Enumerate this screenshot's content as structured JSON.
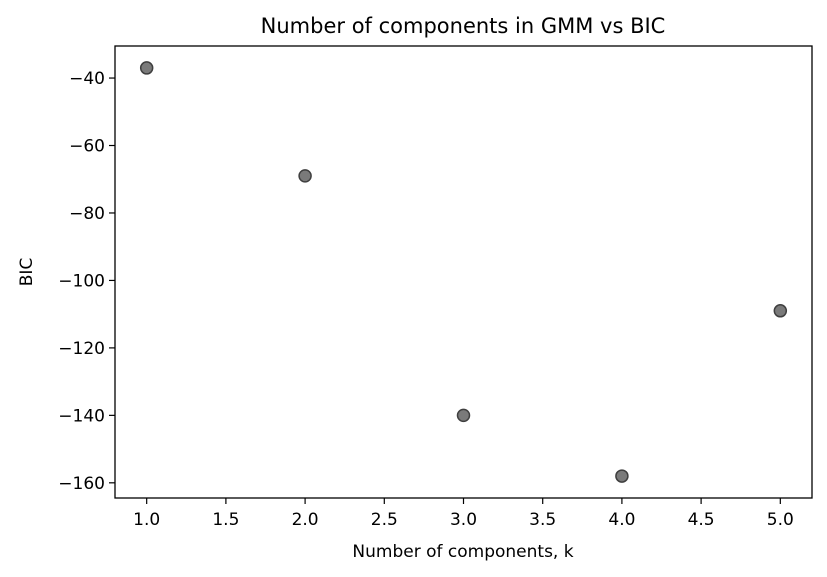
{
  "chart_data": {
    "type": "scatter",
    "title": "Number of components in GMM vs BIC",
    "xlabel": "Number of components, k",
    "ylabel": "BIC",
    "x": [
      1,
      2,
      3,
      4,
      5
    ],
    "y": [
      -37,
      -69,
      -140,
      -158,
      -109
    ],
    "xlim": [
      0.8,
      5.2
    ],
    "ylim": [
      -164.5,
      -30.5
    ],
    "xticks": [
      1.0,
      1.5,
      2.0,
      2.5,
      3.0,
      3.5,
      4.0,
      4.5,
      5.0
    ],
    "xtick_labels": [
      "1.0",
      "1.5",
      "2.0",
      "2.5",
      "3.0",
      "3.5",
      "4.0",
      "4.5",
      "5.0"
    ],
    "yticks": [
      -40,
      -60,
      -80,
      -100,
      -120,
      -140,
      -160
    ],
    "ytick_labels": [
      "−40",
      "−60",
      "−80",
      "−100",
      "−120",
      "−140",
      "−160"
    ],
    "grid": false,
    "marker_color": "#7a7a7a",
    "marker_edge_color": "#3f3f3f"
  }
}
